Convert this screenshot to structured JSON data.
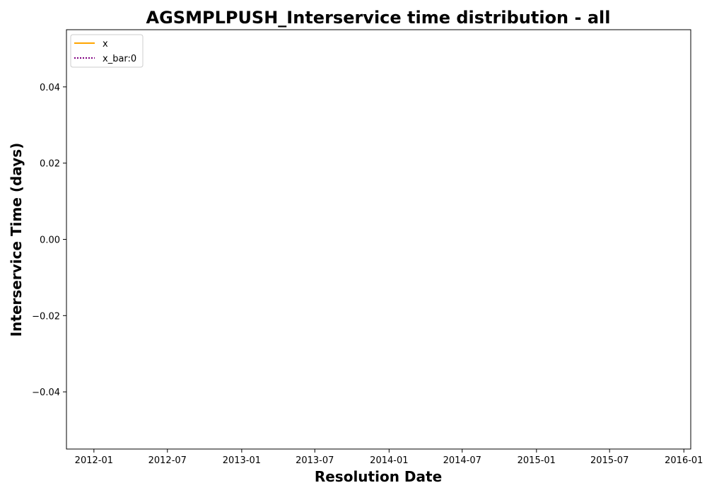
{
  "chart_data": {
    "type": "line",
    "title": "AGSMPLPUSH_Interservice time distribution - all",
    "xlabel": "Resolution Date",
    "ylabel": "Interservice Time (days)",
    "x_ticks": [
      "2012-01",
      "2012-07",
      "2013-01",
      "2013-07",
      "2014-01",
      "2014-07",
      "2015-01",
      "2015-07",
      "2016-01"
    ],
    "y_ticks": [
      "0.04",
      "0.02",
      "0.00",
      "−0.02",
      "−0.04"
    ],
    "xlim": [
      "2011-10-25",
      "2016-01-18"
    ],
    "ylim": [
      -0.055,
      0.055
    ],
    "grid": false,
    "legend_placement": "upper-left",
    "series": [
      {
        "name": "x",
        "color": "#FFA500",
        "style": "solid",
        "values": []
      },
      {
        "name": "x_bar:0",
        "color": "#800080",
        "style": "dotted",
        "values": []
      }
    ]
  }
}
